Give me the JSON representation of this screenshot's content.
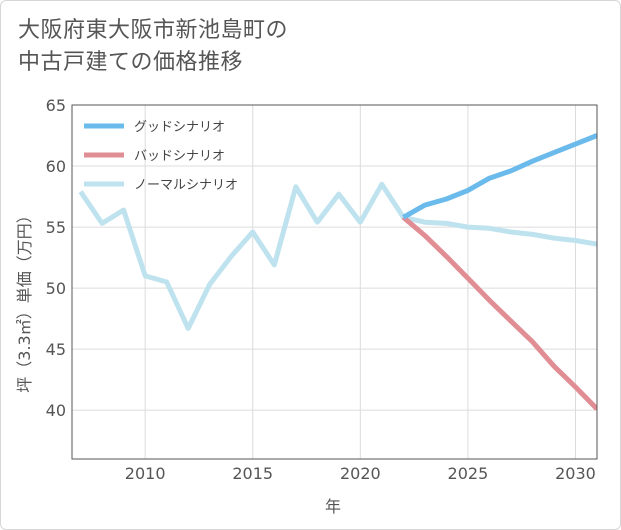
{
  "title_lines": [
    "大阪府東大阪市新池島町の",
    "中古戸建ての価格推移"
  ],
  "chart_data": {
    "type": "line",
    "title": "大阪府東大阪市新池島町の中古戸建ての価格推移",
    "xlabel": "年",
    "ylabel": "坪（3.3㎡）単価（万円）",
    "xlim": [
      2006.6,
      2031
    ],
    "ylim": [
      36,
      65
    ],
    "x_ticks": [
      2010,
      2015,
      2020,
      2025,
      2030
    ],
    "y_ticks": [
      40,
      45,
      50,
      55,
      60,
      65
    ],
    "grid": true,
    "legend_position": "top-left",
    "series": [
      {
        "name": "グッドシナリオ",
        "color": "#6bbaec",
        "x": [
          2022,
          2023,
          2024,
          2025,
          2026,
          2027,
          2028,
          2029,
          2030,
          2031
        ],
        "values": [
          55.8,
          56.8,
          57.3,
          58.0,
          59.0,
          59.6,
          60.4,
          61.1,
          61.8,
          62.5
        ]
      },
      {
        "name": "バッドシナリオ",
        "color": "#e08d94",
        "x": [
          2022,
          2023,
          2024,
          2025,
          2026,
          2027,
          2028,
          2029,
          2030,
          2031
        ],
        "values": [
          55.8,
          54.3,
          52.6,
          50.8,
          49.0,
          47.3,
          45.6,
          43.6,
          41.9,
          40.1
        ]
      },
      {
        "name": "ノーマルシナリオ",
        "color": "#bfe2ef",
        "x": [
          2007,
          2008,
          2009,
          2010,
          2011,
          2012,
          2013,
          2014,
          2015,
          2016,
          2017,
          2018,
          2019,
          2020,
          2021,
          2022,
          2023,
          2024,
          2025,
          2026,
          2027,
          2028,
          2029,
          2030,
          2031
        ],
        "values": [
          57.9,
          55.3,
          56.4,
          51.0,
          50.5,
          46.7,
          50.3,
          52.6,
          54.6,
          51.9,
          58.3,
          55.4,
          57.7,
          55.4,
          58.5,
          55.8,
          55.4,
          55.3,
          55.0,
          54.9,
          54.6,
          54.4,
          54.1,
          53.9,
          53.6
        ]
      }
    ]
  }
}
